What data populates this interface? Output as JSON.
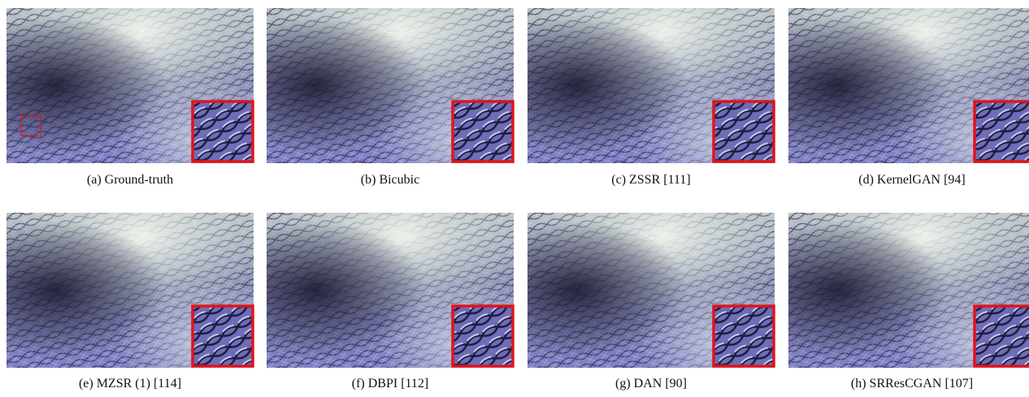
{
  "figure": {
    "panels": [
      {
        "caption": "(a)  Ground-truth"
      },
      {
        "caption": "(b)  Bicubic"
      },
      {
        "caption": "(c)  ZSSR [111]"
      },
      {
        "caption": "(d)  KernelGAN [94]"
      },
      {
        "caption": "(e)  MZSR (1) [114]"
      },
      {
        "caption": "(f)  DBPI [112]"
      },
      {
        "caption": "(g)  DAN [90]"
      },
      {
        "caption": "(h)  SRResCGAN [107]"
      }
    ]
  }
}
